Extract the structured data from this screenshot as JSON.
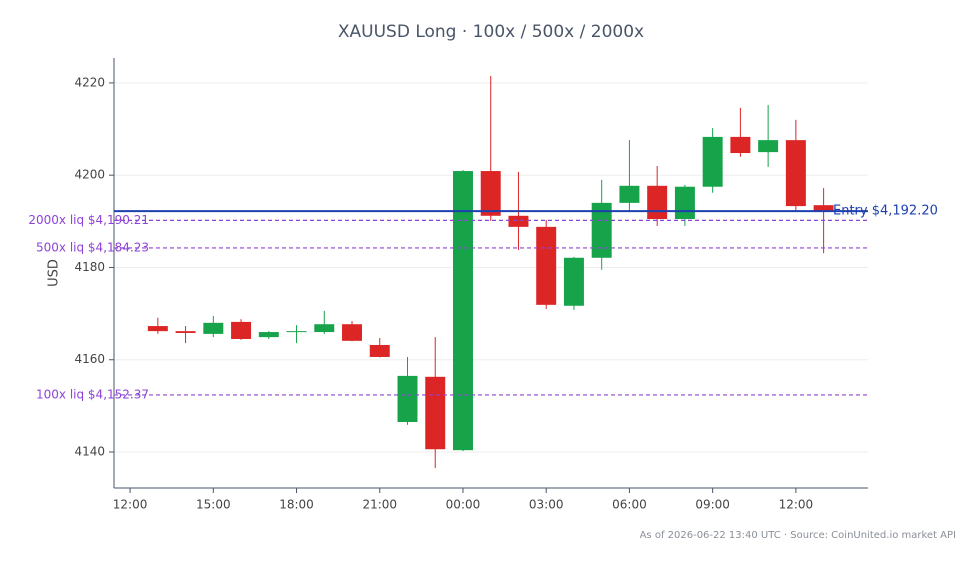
{
  "chart_data": {
    "type": "candlestick",
    "title": "XAUUSD Long · 100x / 500x / 2000x",
    "ylabel": "USD",
    "footnote": "As of 2026-06-22 13:40 UTC · Source: CoinUnited.io market API",
    "x": [
      1,
      2,
      3,
      4,
      5,
      6,
      7,
      8,
      9,
      10,
      11,
      12,
      13,
      14,
      15,
      16,
      17,
      18,
      19,
      20,
      21,
      22,
      23,
      24,
      25
    ],
    "open": [
      4167.3,
      4166.2,
      4165.6,
      4168.2,
      4164.9,
      4166.0,
      4166.0,
      4167.7,
      4163.2,
      4146.5,
      4156.3,
      4140.4,
      4200.9,
      4191.2,
      4188.8,
      4171.7,
      4182.1,
      4194.0,
      4197.7,
      4190.5,
      4197.5,
      4208.3,
      4205.0,
      4207.6,
      4193.5
    ],
    "high": [
      4169.1,
      4167.3,
      4169.5,
      4168.8,
      4166.2,
      4167.5,
      4170.6,
      4168.4,
      4164.7,
      4160.6,
      4164.9,
      4201.1,
      4221.5,
      4200.7,
      4190.3,
      4182.3,
      4199.0,
      4207.6,
      4202.0,
      4197.9,
      4210.2,
      4214.6,
      4215.2,
      4212.0,
      4197.2
    ],
    "low": [
      4165.6,
      4163.6,
      4164.9,
      4164.3,
      4164.5,
      4163.6,
      4165.6,
      4164.0,
      4160.5,
      4145.9,
      4136.5,
      4140.2,
      4190.1,
      4183.8,
      4171.0,
      4170.8,
      4179.5,
      4192.0,
      4189.0,
      4189.0,
      4196.2,
      4204.0,
      4201.8,
      4192.2,
      4183.1
    ],
    "close": [
      4166.2,
      4165.8,
      4168.0,
      4164.5,
      4166.0,
      4166.2,
      4167.7,
      4164.1,
      4160.6,
      4156.5,
      4140.6,
      4200.9,
      4191.2,
      4188.8,
      4171.9,
      4182.1,
      4194.0,
      4197.7,
      4190.5,
      4197.5,
      4208.3,
      4204.8,
      4207.6,
      4193.3,
      4192.2
    ],
    "up_color": "#16a34a",
    "down_color": "#dc2626",
    "xlim": [
      -0.58,
      26.6
    ],
    "xticks": [
      {
        "value": 0,
        "label": "12:00"
      },
      {
        "value": 3,
        "label": "15:00"
      },
      {
        "value": 6,
        "label": "18:00"
      },
      {
        "value": 9,
        "label": "21:00"
      },
      {
        "value": 12,
        "label": "00:00"
      },
      {
        "value": 15,
        "label": "03:00"
      },
      {
        "value": 18,
        "label": "06:00"
      },
      {
        "value": 21,
        "label": "09:00"
      },
      {
        "value": 24,
        "label": "12:00"
      }
    ],
    "ylim": [
      4132.2,
      4225.4
    ],
    "yticks": [
      4140,
      4160,
      4180,
      4200,
      4220
    ],
    "grid": true,
    "entry": {
      "value": 4192.2,
      "label": "Entry $4,192.20",
      "color": "#1e40af"
    },
    "liquidations": [
      {
        "value": 4190.21,
        "label": "2000x liq $4,190.21"
      },
      {
        "value": 4184.23,
        "label": "500x liq $4,184.23"
      },
      {
        "value": 4152.37,
        "label": "100x liq $4,152.37"
      }
    ],
    "liq_color": "#8e44d6"
  }
}
